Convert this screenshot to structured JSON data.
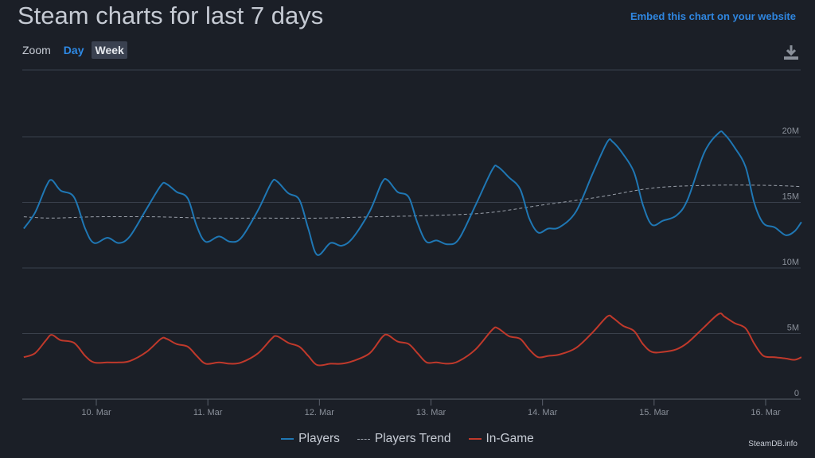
{
  "header": {
    "title": "Steam charts for last 7 days",
    "embed_link": "Embed this chart on your website"
  },
  "zoom": {
    "label": "Zoom",
    "day": "Day",
    "week": "Week",
    "selected": "Week"
  },
  "credit": "SteamDB.info",
  "chart_data": {
    "type": "line",
    "title": "Steam charts for last 7 days",
    "y_unit": "millions",
    "ylim": [
      0,
      20
    ],
    "yticks": [
      0,
      5,
      10,
      15,
      20
    ],
    "ytick_labels": [
      "0",
      "5M",
      "10M",
      "15M",
      "20M"
    ],
    "xlim": [
      9.35,
      16.32
    ],
    "x_unit": "day of March",
    "xticks": [
      10,
      11,
      12,
      13,
      14,
      15,
      16
    ],
    "xtick_labels": [
      "10. Mar",
      "11. Mar",
      "12. Mar",
      "13. Mar",
      "14. Mar",
      "15. Mar",
      "16. Mar"
    ],
    "grid": true,
    "legend_position": "bottom-center",
    "series": [
      {
        "name": "Players",
        "color": "#1f77b4",
        "style": "solid",
        "points": [
          [
            9.35,
            13.0
          ],
          [
            9.45,
            14.2
          ],
          [
            9.55,
            16.2
          ],
          [
            9.6,
            16.7
          ],
          [
            9.68,
            15.9
          ],
          [
            9.8,
            15.4
          ],
          [
            9.9,
            13.0
          ],
          [
            9.98,
            11.9
          ],
          [
            10.1,
            12.3
          ],
          [
            10.2,
            11.9
          ],
          [
            10.3,
            12.4
          ],
          [
            10.45,
            14.5
          ],
          [
            10.58,
            16.3
          ],
          [
            10.63,
            16.4
          ],
          [
            10.72,
            15.8
          ],
          [
            10.82,
            15.3
          ],
          [
            10.9,
            13.2
          ],
          [
            10.98,
            12.0
          ],
          [
            11.1,
            12.4
          ],
          [
            11.2,
            12.0
          ],
          [
            11.3,
            12.3
          ],
          [
            11.45,
            14.4
          ],
          [
            11.57,
            16.5
          ],
          [
            11.62,
            16.6
          ],
          [
            11.72,
            15.7
          ],
          [
            11.82,
            15.2
          ],
          [
            11.9,
            13.0
          ],
          [
            11.98,
            11.0
          ],
          [
            12.1,
            11.9
          ],
          [
            12.2,
            11.7
          ],
          [
            12.3,
            12.3
          ],
          [
            12.45,
            14.3
          ],
          [
            12.56,
            16.5
          ],
          [
            12.61,
            16.7
          ],
          [
            12.7,
            15.8
          ],
          [
            12.8,
            15.4
          ],
          [
            12.88,
            13.4
          ],
          [
            12.96,
            12.0
          ],
          [
            13.05,
            12.1
          ],
          [
            13.15,
            11.8
          ],
          [
            13.25,
            12.2
          ],
          [
            13.4,
            14.8
          ],
          [
            13.55,
            17.5
          ],
          [
            13.6,
            17.7
          ],
          [
            13.7,
            16.9
          ],
          [
            13.8,
            16.0
          ],
          [
            13.88,
            13.8
          ],
          [
            13.96,
            12.7
          ],
          [
            14.05,
            13.0
          ],
          [
            14.15,
            13.1
          ],
          [
            14.3,
            14.3
          ],
          [
            14.45,
            17.2
          ],
          [
            14.58,
            19.6
          ],
          [
            14.63,
            19.6
          ],
          [
            14.72,
            18.7
          ],
          [
            14.82,
            17.3
          ],
          [
            14.9,
            14.8
          ],
          [
            14.98,
            13.3
          ],
          [
            15.08,
            13.6
          ],
          [
            15.2,
            14.0
          ],
          [
            15.3,
            15.2
          ],
          [
            15.45,
            18.8
          ],
          [
            15.58,
            20.3
          ],
          [
            15.63,
            20.2
          ],
          [
            15.72,
            19.2
          ],
          [
            15.82,
            17.7
          ],
          [
            15.9,
            14.9
          ],
          [
            15.98,
            13.4
          ],
          [
            16.08,
            13.1
          ],
          [
            16.18,
            12.5
          ],
          [
            16.26,
            12.8
          ],
          [
            16.32,
            13.5
          ]
        ]
      },
      {
        "name": "Players Trend",
        "color": "#9aa0aa",
        "style": "dashed",
        "points": [
          [
            9.35,
            13.9
          ],
          [
            9.6,
            13.8
          ],
          [
            10.0,
            13.9
          ],
          [
            10.5,
            13.9
          ],
          [
            11.0,
            13.8
          ],
          [
            11.5,
            13.8
          ],
          [
            12.0,
            13.8
          ],
          [
            12.5,
            13.9
          ],
          [
            13.0,
            14.0
          ],
          [
            13.5,
            14.2
          ],
          [
            14.0,
            14.8
          ],
          [
            14.5,
            15.4
          ],
          [
            15.0,
            16.1
          ],
          [
            15.5,
            16.3
          ],
          [
            16.0,
            16.3
          ],
          [
            16.32,
            16.2
          ]
        ]
      },
      {
        "name": "In-Game",
        "color": "#c0392b",
        "style": "solid",
        "points": [
          [
            9.35,
            3.2
          ],
          [
            9.45,
            3.5
          ],
          [
            9.55,
            4.5
          ],
          [
            9.6,
            4.9
          ],
          [
            9.68,
            4.5
          ],
          [
            9.8,
            4.3
          ],
          [
            9.9,
            3.3
          ],
          [
            9.98,
            2.8
          ],
          [
            10.1,
            2.8
          ],
          [
            10.2,
            2.8
          ],
          [
            10.3,
            2.9
          ],
          [
            10.45,
            3.6
          ],
          [
            10.58,
            4.6
          ],
          [
            10.63,
            4.6
          ],
          [
            10.72,
            4.2
          ],
          [
            10.82,
            4.0
          ],
          [
            10.9,
            3.3
          ],
          [
            10.98,
            2.7
          ],
          [
            11.1,
            2.8
          ],
          [
            11.2,
            2.7
          ],
          [
            11.3,
            2.8
          ],
          [
            11.45,
            3.5
          ],
          [
            11.57,
            4.6
          ],
          [
            11.62,
            4.8
          ],
          [
            11.72,
            4.3
          ],
          [
            11.82,
            4.0
          ],
          [
            11.9,
            3.3
          ],
          [
            11.98,
            2.6
          ],
          [
            12.1,
            2.7
          ],
          [
            12.2,
            2.7
          ],
          [
            12.3,
            2.9
          ],
          [
            12.45,
            3.5
          ],
          [
            12.56,
            4.7
          ],
          [
            12.61,
            4.9
          ],
          [
            12.7,
            4.4
          ],
          [
            12.8,
            4.2
          ],
          [
            12.88,
            3.5
          ],
          [
            12.96,
            2.8
          ],
          [
            13.05,
            2.8
          ],
          [
            13.15,
            2.7
          ],
          [
            13.25,
            2.9
          ],
          [
            13.4,
            3.8
          ],
          [
            13.55,
            5.3
          ],
          [
            13.6,
            5.4
          ],
          [
            13.7,
            4.8
          ],
          [
            13.8,
            4.6
          ],
          [
            13.88,
            3.8
          ],
          [
            13.96,
            3.2
          ],
          [
            14.05,
            3.3
          ],
          [
            14.15,
            3.4
          ],
          [
            14.3,
            3.9
          ],
          [
            14.45,
            5.1
          ],
          [
            14.58,
            6.3
          ],
          [
            14.63,
            6.2
          ],
          [
            14.72,
            5.6
          ],
          [
            14.82,
            5.2
          ],
          [
            14.9,
            4.2
          ],
          [
            14.98,
            3.6
          ],
          [
            15.08,
            3.6
          ],
          [
            15.2,
            3.8
          ],
          [
            15.3,
            4.3
          ],
          [
            15.45,
            5.5
          ],
          [
            15.58,
            6.5
          ],
          [
            15.63,
            6.3
          ],
          [
            15.72,
            5.8
          ],
          [
            15.82,
            5.4
          ],
          [
            15.9,
            4.2
          ],
          [
            15.98,
            3.3
          ],
          [
            16.08,
            3.2
          ],
          [
            16.18,
            3.1
          ],
          [
            16.26,
            3.0
          ],
          [
            16.32,
            3.2
          ]
        ]
      }
    ]
  }
}
